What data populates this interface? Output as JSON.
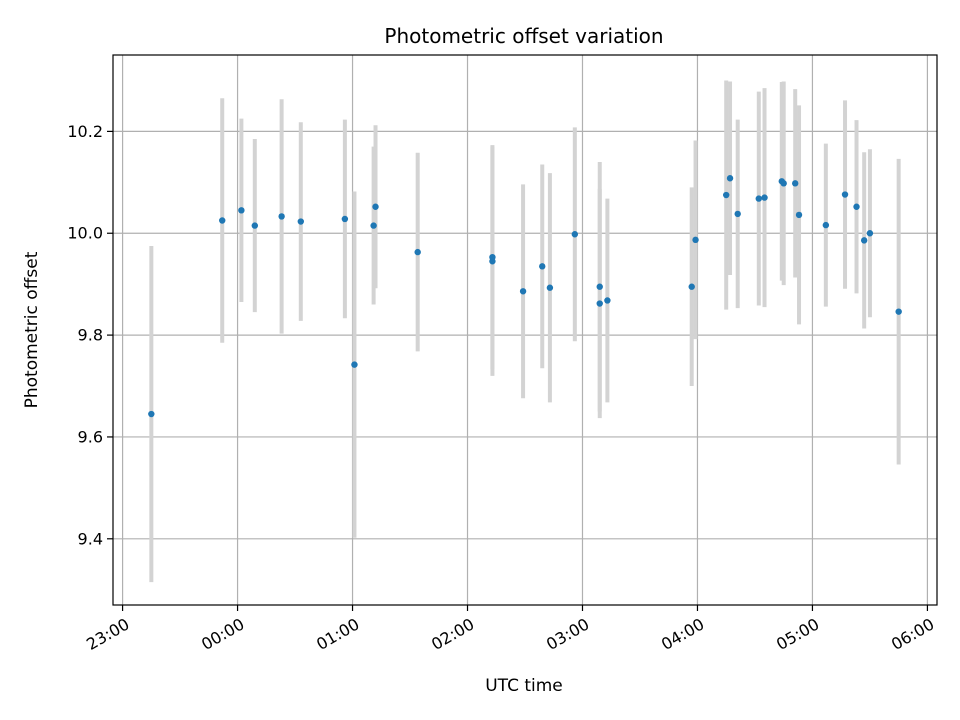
{
  "chart_data": {
    "type": "scatter",
    "title": "Photometric offset variation",
    "xlabel": "UTC time",
    "ylabel": "Photometric offset",
    "x_unit": "UTC hh:mm (points after 23:59 fall on the following day)",
    "xlim": [
      "22:55",
      "06:05"
    ],
    "ylim": [
      9.27,
      10.35
    ],
    "x_ticks": [
      "23:00",
      "00:00",
      "01:00",
      "02:00",
      "03:00",
      "04:00",
      "05:00",
      "06:00"
    ],
    "y_ticks": [
      "9.4",
      "9.6",
      "9.8",
      "10.0",
      "10.2"
    ],
    "grid": true,
    "colors": {
      "point": "#1f77b4",
      "errorbar": "#d3d3d3",
      "grid": "#b0b0b0"
    },
    "series": [
      {
        "points": [
          {
            "x": "23:15",
            "y": 9.645,
            "yerr": 0.33
          },
          {
            "x": "23:52",
            "y": 10.025,
            "yerr": 0.24
          },
          {
            "x": "00:02",
            "y": 10.045,
            "yerr": 0.18
          },
          {
            "x": "00:09",
            "y": 10.015,
            "yerr": 0.17
          },
          {
            "x": "00:23",
            "y": 10.033,
            "yerr": 0.23
          },
          {
            "x": "00:33",
            "y": 10.023,
            "yerr": 0.195
          },
          {
            "x": "00:56",
            "y": 10.028,
            "yerr": 0.195
          },
          {
            "x": "01:01",
            "y": 9.742,
            "yerr": 0.34
          },
          {
            "x": "01:11",
            "y": 10.015,
            "yerr": 0.155
          },
          {
            "x": "01:12",
            "y": 10.052,
            "yerr": 0.16
          },
          {
            "x": "01:34",
            "y": 9.963,
            "yerr": 0.195
          },
          {
            "x": "02:13",
            "y": 9.945,
            "yerr": 0.225
          },
          {
            "x": "02:13",
            "y": 9.953,
            "yerr": 0.22
          },
          {
            "x": "02:29",
            "y": 9.886,
            "yerr": 0.21
          },
          {
            "x": "02:39",
            "y": 9.935,
            "yerr": 0.2
          },
          {
            "x": "02:43",
            "y": 9.893,
            "yerr": 0.225
          },
          {
            "x": "02:56",
            "y": 9.998,
            "yerr": 0.21
          },
          {
            "x": "03:09",
            "y": 9.862,
            "yerr": 0.225
          },
          {
            "x": "03:09",
            "y": 9.895,
            "yerr": 0.245
          },
          {
            "x": "03:13",
            "y": 9.868,
            "yerr": 0.2
          },
          {
            "x": "03:57",
            "y": 9.895,
            "yerr": 0.195
          },
          {
            "x": "03:59",
            "y": 9.987,
            "yerr": 0.195
          },
          {
            "x": "04:15",
            "y": 10.075,
            "yerr": 0.225
          },
          {
            "x": "04:17",
            "y": 10.108,
            "yerr": 0.19
          },
          {
            "x": "04:21",
            "y": 10.038,
            "yerr": 0.185
          },
          {
            "x": "04:32",
            "y": 10.068,
            "yerr": 0.21
          },
          {
            "x": "04:35",
            "y": 10.07,
            "yerr": 0.215
          },
          {
            "x": "04:44",
            "y": 10.102,
            "yerr": 0.195
          },
          {
            "x": "04:45",
            "y": 10.098,
            "yerr": 0.2
          },
          {
            "x": "04:51",
            "y": 10.098,
            "yerr": 0.185
          },
          {
            "x": "04:53",
            "y": 10.036,
            "yerr": 0.215
          },
          {
            "x": "05:07",
            "y": 10.016,
            "yerr": 0.16
          },
          {
            "x": "05:17",
            "y": 10.076,
            "yerr": 0.185
          },
          {
            "x": "05:23",
            "y": 10.052,
            "yerr": 0.17
          },
          {
            "x": "05:27",
            "y": 9.986,
            "yerr": 0.173
          },
          {
            "x": "05:30",
            "y": 10.0,
            "yerr": 0.165
          },
          {
            "x": "05:45",
            "y": 9.846,
            "yerr": 0.3
          }
        ]
      }
    ]
  }
}
